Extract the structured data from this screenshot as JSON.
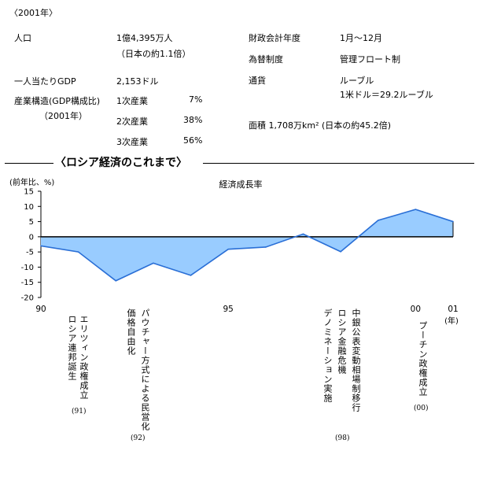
{
  "header": {
    "year_label": "〈2001年〉"
  },
  "facts_left": {
    "population_label": "人口",
    "population_value": "1億4,395万人",
    "population_note": "（日本の約1.1倍）",
    "gdp_label": "一人当たりGDP",
    "gdp_value": "2,153ドル",
    "structure_label": "産業構造(GDP構成比)",
    "structure_year": "（2001年）",
    "sectors": [
      {
        "name": "1次産業",
        "share": "7%"
      },
      {
        "name": "2次産業",
        "share": "38%"
      },
      {
        "name": "3次産業",
        "share": "56%"
      }
    ]
  },
  "facts_right": {
    "fiscal_label": "財政会計年度",
    "fiscal_value": "1月～12月",
    "fx_label": "為替制度",
    "fx_value": "管理フロート制",
    "currency_label": "通貨",
    "currency_value": "ルーブル",
    "currency_rate": "1米ドル＝29.2ルーブル",
    "area_text": "面積 1,708万km² (日本の約45.2倍)"
  },
  "section": {
    "title": "〈ロシア経済のこれまで〉"
  },
  "chart_data": {
    "type": "area",
    "title": "経済成長率",
    "ylabel": "(前年比、%)",
    "xlabel": "(年)",
    "ylim": [
      -20,
      15
    ],
    "yticks": [
      15,
      10,
      5,
      0,
      -5,
      -10,
      -15,
      -20
    ],
    "x": [
      1990,
      1991,
      1992,
      1993,
      1994,
      1995,
      1996,
      1997,
      1998,
      1999,
      2000,
      2001
    ],
    "xtick_labels": [
      {
        "x": 1990,
        "label": "90"
      },
      {
        "x": 1995,
        "label": "95"
      },
      {
        "x": 2000,
        "label": "00"
      },
      {
        "x": 2001,
        "label": "01"
      }
    ],
    "series": [
      {
        "values": [
          -3.0,
          -5.0,
          -14.5,
          -8.7,
          -12.7,
          -4.1,
          -3.4,
          0.9,
          -4.9,
          5.4,
          9.0,
          5.0
        ]
      }
    ],
    "fill_color": "#99ccff",
    "line_color": "#2a6fd6",
    "grid": false
  },
  "annotations": [
    {
      "lines": [
        "エリツィン政権成立",
        "ロシア連邦誕生"
      ],
      "year": "(91)"
    },
    {
      "lines": [
        "パウチャー方式による民営化",
        "価格自由化"
      ],
      "year": "(92)"
    },
    {
      "lines": [
        "中銀公表変動相場制移行",
        "ロシア金融危機",
        "デノミネーション実施"
      ],
      "year": "(98)"
    },
    {
      "lines": [
        "プーチン政権成立"
      ],
      "year": "(00)"
    }
  ]
}
